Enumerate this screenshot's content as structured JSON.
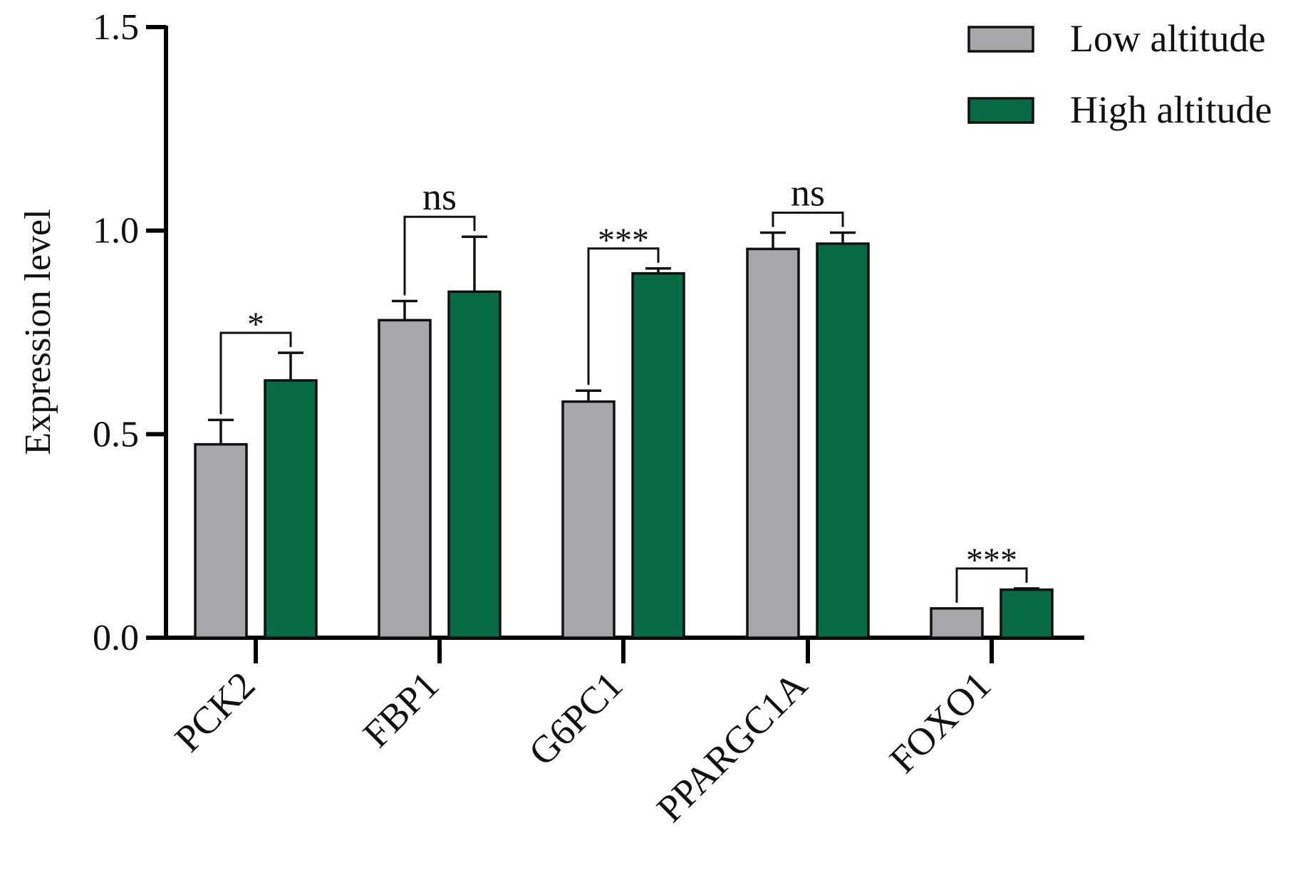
{
  "chart_data": {
    "type": "bar",
    "ylabel": "Expression level",
    "xlabel": "",
    "ylim": [
      0,
      1.5
    ],
    "yticks": [
      0.0,
      0.5,
      1.0,
      1.5
    ],
    "ytick_labels": [
      "0.0",
      "0.5",
      "1.0",
      "1.5"
    ],
    "categories": [
      "PCK2",
      "FBP1",
      "G6PC1",
      "PPARGC1A",
      "FOXO1"
    ],
    "series": [
      {
        "name": "Low altitude",
        "color": "#a6a6ab",
        "values": [
          0.475,
          0.78,
          0.58,
          0.955,
          0.072
        ],
        "errors": [
          0.06,
          0.047,
          0.027,
          0.04,
          0.0
        ]
      },
      {
        "name": "High altitude",
        "color": "#076b45",
        "values": [
          0.632,
          0.85,
          0.895,
          0.968,
          0.118
        ],
        "errors": [
          0.068,
          0.135,
          0.012,
          0.027,
          0.003
        ]
      }
    ],
    "significance": [
      "*",
      "ns",
      "***",
      "ns",
      "***"
    ],
    "legend_position": "top-right"
  }
}
